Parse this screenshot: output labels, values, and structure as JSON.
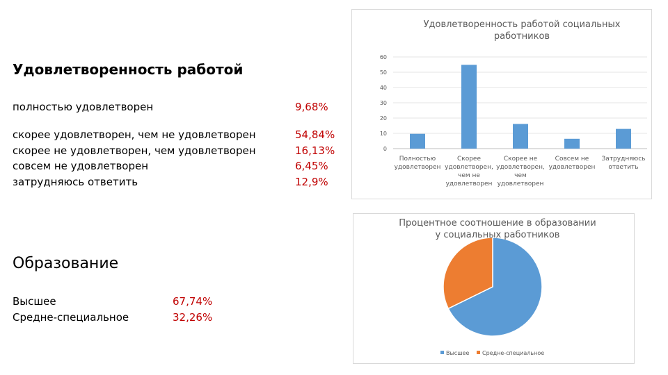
{
  "satisfaction": {
    "title": "Удовлетворенность работой",
    "items": [
      {
        "label": "полностью удовлетворен",
        "value": "9,68%"
      },
      {
        "label": "скорее удовлетворен, чем не удовлетворен",
        "value": "54,84%"
      },
      {
        "label": "скорее не удовлетворен, чем удовлетворен",
        "value": "16,13%"
      },
      {
        "label": "совсем не удовлетворен",
        "value": "6,45%"
      },
      {
        "label": "затрудняюсь ответить",
        "value": "12,9%"
      }
    ]
  },
  "education": {
    "title": "Образование",
    "items": [
      {
        "label": "Высшее",
        "value": "67,74%"
      },
      {
        "label": "Средне-специальное",
        "value": "32,26%"
      }
    ]
  },
  "chart_data": [
    {
      "type": "bar",
      "title": "Удовлетворенность работой социальных работников",
      "categories": [
        "Полностью удовлетворен",
        "Скорее удовлетворен, чем не удовлетворен",
        "Скорее не удовлетворен, чем удовлетворен",
        "Совсем не удовлетворен",
        "Затрудняюсь ответить"
      ],
      "values": [
        9.68,
        54.84,
        16.13,
        6.45,
        12.9
      ],
      "color": "#5b9bd5",
      "ylim": [
        0,
        60
      ],
      "yticks": [
        0,
        10,
        20,
        30,
        40,
        50,
        60
      ],
      "grid": true
    },
    {
      "type": "pie",
      "title": "Процентное соотношение в образовании у социальных работников",
      "series": [
        {
          "name": "Высшее",
          "color": "#5b9bd5"
        },
        {
          "name": "Средне-специальное",
          "color": "#ed7d31"
        }
      ],
      "values": [
        67.74,
        32.26
      ]
    }
  ]
}
